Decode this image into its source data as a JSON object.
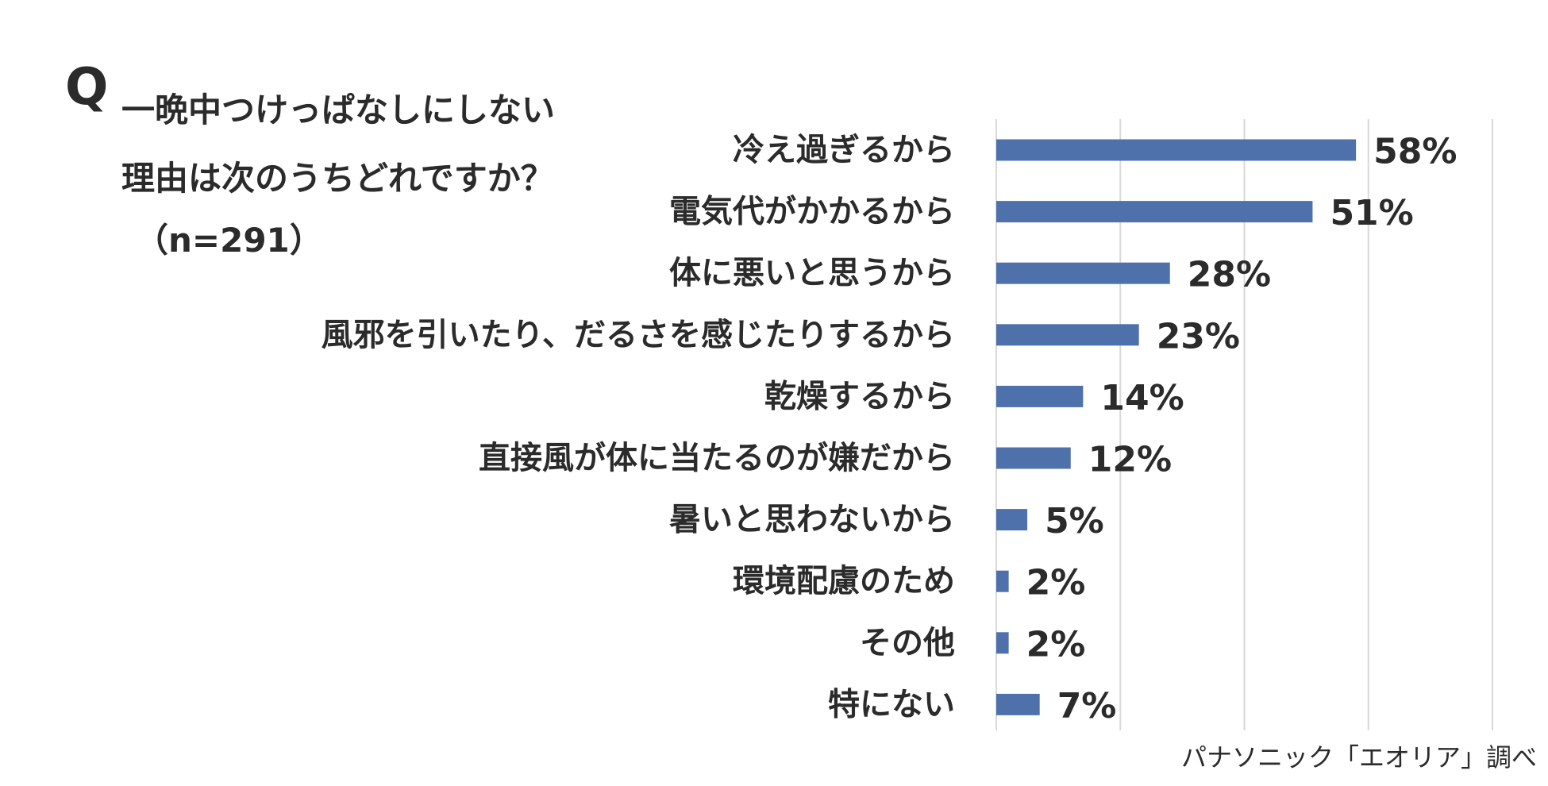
{
  "question": {
    "mark": "Q",
    "line1": "一晩中つけっぱなしにしない",
    "line2": "理由は次のうちどれですか？",
    "sample": "（n=291）"
  },
  "source": "パナソニック「エオリア」調べ",
  "chart_data": {
    "type": "bar",
    "orientation": "horizontal",
    "categories": [
      "冷え過ぎるから",
      "電気代がかかるから",
      "体に悪いと思うから",
      "風邪を引いたり、だるさを感じたりするから",
      "乾燥するから",
      "直接風が体に当たるのが嫌だから",
      "暑いと思わないから",
      "環境配慮のため",
      "その他",
      "特にない"
    ],
    "values": [
      58,
      51,
      28,
      23,
      14,
      12,
      5,
      2,
      2,
      7
    ],
    "value_labels": [
      "58%",
      "51%",
      "28%",
      "23%",
      "14%",
      "12%",
      "5%",
      "2%",
      "2%",
      "7%"
    ],
    "unit": "%",
    "xlim": [
      0,
      80
    ],
    "grid": true,
    "bar_color": "#4f71ab",
    "grid_color": "#d9d9d9"
  }
}
